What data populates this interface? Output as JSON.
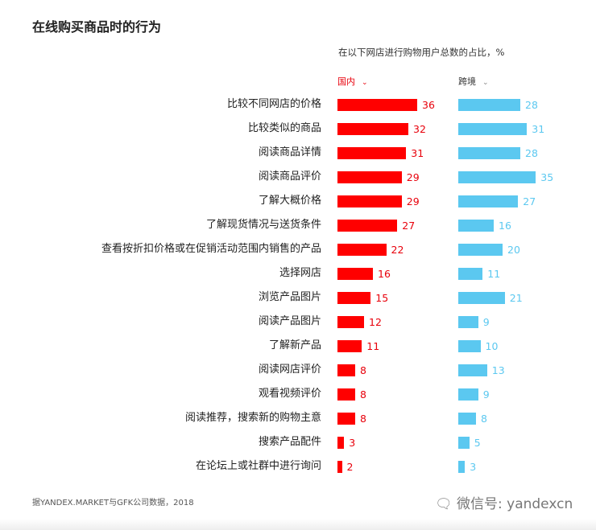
{
  "chart_data": {
    "type": "bar",
    "orientation": "horizontal",
    "title": "在线购买商品时的行为",
    "subtitle": "在以下网店进行购物用户总数的占比，%",
    "categories": [
      "比较不同网店的价格",
      "比较类似的商品",
      "阅读商品详情",
      "阅读商品评价",
      "了解大概价格",
      "了解现货情况与送货条件",
      "查看按折扣价格或在促销活动范围内销售的产品",
      "选择网店",
      "浏览产品图片",
      "阅读产品图片",
      "了解新产品",
      "阅读网店评价",
      "观看视频评价",
      "阅读推荐，搜索新的购物主意",
      "搜索产品配件",
      "在论坛上或社群中进行询问"
    ],
    "series": [
      {
        "name": "国内",
        "color": "#ff0000",
        "values": [
          36,
          32,
          31,
          29,
          29,
          27,
          22,
          16,
          15,
          12,
          11,
          8,
          8,
          8,
          3,
          2
        ]
      },
      {
        "name": "跨境",
        "color": "#5bc8f0",
        "values": [
          28,
          31,
          28,
          35,
          27,
          16,
          20,
          11,
          21,
          9,
          10,
          13,
          9,
          8,
          5,
          3
        ]
      }
    ],
    "source": "据YANDEX.MARKET与GFK公司数据，2018",
    "watermark": "微信号: yandexcn"
  }
}
